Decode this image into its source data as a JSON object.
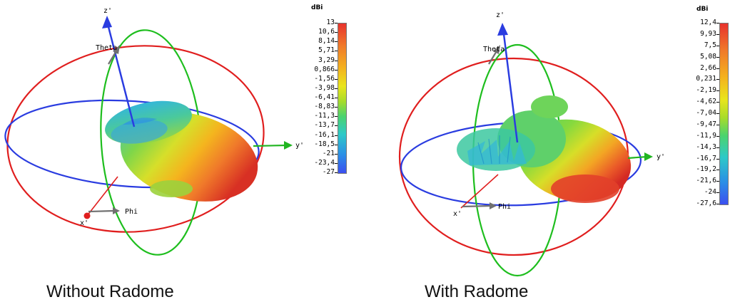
{
  "panels": [
    {
      "caption": "Without Radome",
      "axes": {
        "z": "z'",
        "theta": "Theta",
        "y": "y'",
        "phi": "Phi",
        "x": "x'"
      },
      "scale_unit": "dBi",
      "scale_ticks": [
        "13",
        "10,6",
        "8,14",
        "5,71",
        "3,29",
        "0,866",
        "-1,56",
        "-3,98",
        "-6,41",
        "-8,83",
        "-11,3",
        "-13,7",
        "-16,1",
        "-18,5",
        "-21",
        "-23,4",
        "-27"
      ]
    },
    {
      "caption": "With Radome",
      "axes": {
        "z": "z'",
        "theta": "Theta",
        "y": "y'",
        "phi": "Phi",
        "x": "x'"
      },
      "scale_unit": "dBi",
      "scale_ticks": [
        "12,4",
        "9,93",
        "7,5",
        "5,08",
        "2,66",
        "0,231",
        "-2,19",
        "-4,62",
        "-7,04",
        "-9,47",
        "-11,9",
        "-14,3",
        "-16,7",
        "-19,2",
        "-21,6",
        "-24",
        "-27,6"
      ]
    }
  ],
  "colors": {
    "theta_circle": "#e01e1e",
    "phi_circle": "#2a3ce0",
    "vertical_circle": "#1ebe1e",
    "z_axis": "#2a3ce0",
    "y_axis": "#21b521",
    "x_axis": "#e01e1e",
    "arrow_gray": "#707070"
  }
}
